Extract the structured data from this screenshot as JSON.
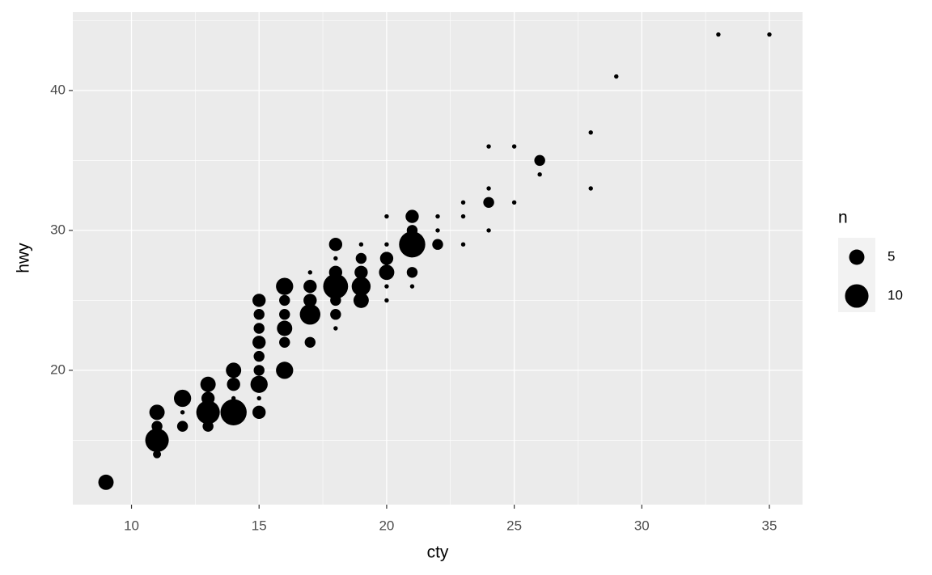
{
  "chart_data": {
    "type": "scatter",
    "x_label": "cty",
    "y_label": "hwy",
    "x": [
      9,
      11,
      11,
      11,
      11,
      12,
      12,
      12,
      13,
      13,
      13,
      13,
      14,
      14,
      14,
      14,
      15,
      15,
      15,
      15,
      15,
      15,
      15,
      15,
      15,
      16,
      16,
      16,
      16,
      16,
      16,
      17,
      17,
      17,
      17,
      17,
      18,
      18,
      18,
      18,
      18,
      18,
      18,
      19,
      19,
      19,
      19,
      19,
      20,
      20,
      20,
      20,
      20,
      20,
      21,
      21,
      21,
      21,
      21,
      22,
      22,
      22,
      23,
      23,
      23,
      24,
      24,
      24,
      24,
      25,
      25,
      26,
      26,
      28,
      28,
      29,
      33,
      35
    ],
    "y": [
      12,
      14,
      15,
      16,
      17,
      16,
      17,
      18,
      16,
      17,
      18,
      19,
      17,
      18,
      19,
      20,
      17,
      18,
      19,
      20,
      21,
      22,
      23,
      24,
      25,
      20,
      22,
      23,
      24,
      25,
      26,
      22,
      24,
      25,
      26,
      27,
      23,
      24,
      25,
      26,
      27,
      28,
      29,
      25,
      26,
      27,
      28,
      29,
      25,
      26,
      27,
      28,
      29,
      31,
      26,
      27,
      29,
      30,
      31,
      29,
      30,
      31,
      29,
      31,
      32,
      30,
      32,
      33,
      36,
      32,
      36,
      34,
      35,
      33,
      37,
      41,
      44,
      44
    ],
    "n": [
      5,
      2,
      10,
      3,
      5,
      3,
      1,
      6,
      3,
      10,
      4,
      5,
      12,
      1,
      4,
      5,
      4,
      1,
      6,
      3,
      3,
      4,
      3,
      3,
      4,
      6,
      3,
      5,
      3,
      3,
      6,
      3,
      8,
      4,
      4,
      1,
      1,
      3,
      3,
      11,
      4,
      1,
      4,
      5,
      7,
      4,
      3,
      1,
      1,
      1,
      5,
      4,
      1,
      1,
      1,
      3,
      12,
      3,
      4,
      3,
      1,
      1,
      1,
      1,
      1,
      1,
      3,
      1,
      1,
      1,
      1,
      1,
      3,
      1,
      1,
      1,
      1,
      1
    ],
    "xlim": [
      7.7,
      36.3
    ],
    "ylim": [
      10.4,
      45.6
    ],
    "xticks": [
      10,
      15,
      20,
      25,
      30,
      35
    ],
    "yticks": [
      20,
      30,
      40
    ],
    "color": "#000000",
    "grid": true,
    "legend": {
      "title": "n",
      "breaks": [
        5,
        10
      ]
    }
  }
}
